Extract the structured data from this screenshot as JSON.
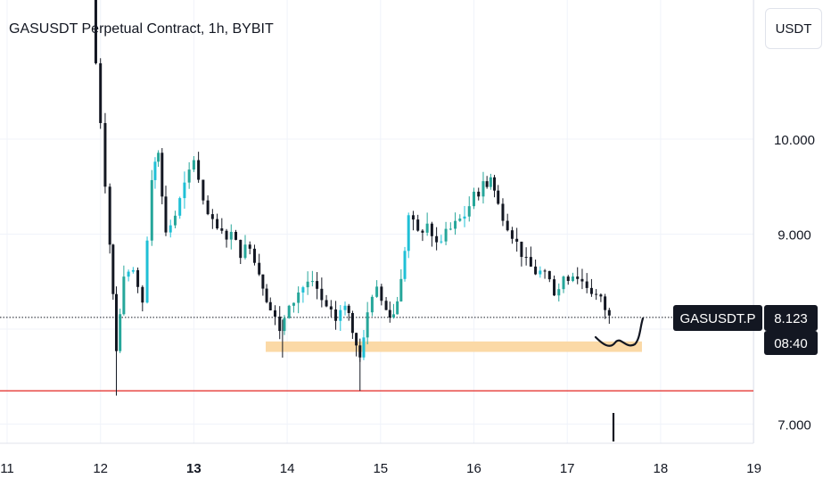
{
  "header": {
    "title": "GASUSDT Perpetual Contract, 1h, BYBIT"
  },
  "currency_button": "USDT",
  "price_label": {
    "symbol": "GASUSDT.P",
    "price": "8.123",
    "countdown": "08:40"
  },
  "colors": {
    "up": "#26a69a",
    "up_bright": "#1fc0d6",
    "down": "#131722",
    "support_zone": "#fbd9a6",
    "red_line": "#e53935",
    "grid": "#f0f3fa",
    "text": "#131722"
  },
  "chart_data": {
    "type": "candlestick",
    "title": "GASUSDT Perpetual Contract, 1h, BYBIT",
    "xlabel": "",
    "ylabel": "",
    "x_ticks": [
      "11",
      "12",
      "13",
      "14",
      "15",
      "16",
      "17",
      "18",
      "19"
    ],
    "x_tick_bold": "13",
    "y_ticks": [
      7.0,
      9.0,
      10.0
    ],
    "y_tick_labels": [
      "7.000",
      "9.000",
      "10.000"
    ],
    "x_range_days": [
      11.0,
      19.0
    ],
    "y_range": [
      6.8,
      11.4
    ],
    "last_price": 8.123,
    "horizontal_line": 7.35,
    "support_zone": {
      "x_from": 13.77,
      "x_to": 17.8,
      "y_low": 7.76,
      "y_high": 7.87
    },
    "grid": true,
    "candle_anchors": [
      [
        11.9,
        11.4,
        "down"
      ],
      [
        12.0,
        10.2,
        "down"
      ],
      [
        12.1,
        8.9,
        "down"
      ],
      [
        12.17,
        7.8,
        "down"
      ],
      [
        12.25,
        8.5,
        "up"
      ],
      [
        12.35,
        8.6,
        "up"
      ],
      [
        12.45,
        8.3,
        "down"
      ],
      [
        12.55,
        9.6,
        "up"
      ],
      [
        12.62,
        9.9,
        "up"
      ],
      [
        12.7,
        9.0,
        "down"
      ],
      [
        12.8,
        9.2,
        "up"
      ],
      [
        12.9,
        9.5,
        "up"
      ],
      [
        13.0,
        9.8,
        "up"
      ],
      [
        13.1,
        9.3,
        "down"
      ],
      [
        13.2,
        9.1,
        "down"
      ],
      [
        13.3,
        9.0,
        "down"
      ],
      [
        13.4,
        9.0,
        "down"
      ],
      [
        13.5,
        8.8,
        "down"
      ],
      [
        13.6,
        8.9,
        "up"
      ],
      [
        13.7,
        8.6,
        "down"
      ],
      [
        13.82,
        8.2,
        "down"
      ],
      [
        13.92,
        8.0,
        "down"
      ],
      [
        14.02,
        8.2,
        "up"
      ],
      [
        14.12,
        8.4,
        "up"
      ],
      [
        14.22,
        8.5,
        "up"
      ],
      [
        14.32,
        8.4,
        "down"
      ],
      [
        14.42,
        8.2,
        "down"
      ],
      [
        14.52,
        8.1,
        "down"
      ],
      [
        14.62,
        8.3,
        "up"
      ],
      [
        14.7,
        8.0,
        "down"
      ],
      [
        14.78,
        7.7,
        "down"
      ],
      [
        14.86,
        8.2,
        "up"
      ],
      [
        14.96,
        8.4,
        "up"
      ],
      [
        15.06,
        8.2,
        "down"
      ],
      [
        15.14,
        8.15,
        "up"
      ],
      [
        15.22,
        8.5,
        "up"
      ],
      [
        15.3,
        9.2,
        "up"
      ],
      [
        15.4,
        9.0,
        "down"
      ],
      [
        15.5,
        9.1,
        "up"
      ],
      [
        15.6,
        8.9,
        "down"
      ],
      [
        15.7,
        9.0,
        "up"
      ],
      [
        15.8,
        9.1,
        "up"
      ],
      [
        15.9,
        9.2,
        "up"
      ],
      [
        16.0,
        9.4,
        "up"
      ],
      [
        16.1,
        9.5,
        "up"
      ],
      [
        16.18,
        9.6,
        "up"
      ],
      [
        16.26,
        9.3,
        "down"
      ],
      [
        16.36,
        9.1,
        "down"
      ],
      [
        16.46,
        8.9,
        "down"
      ],
      [
        16.56,
        8.7,
        "down"
      ],
      [
        16.66,
        8.6,
        "down"
      ],
      [
        16.76,
        8.6,
        "down"
      ],
      [
        16.86,
        8.4,
        "down"
      ],
      [
        16.96,
        8.5,
        "up"
      ],
      [
        17.06,
        8.6,
        "up"
      ],
      [
        17.16,
        8.5,
        "down"
      ],
      [
        17.26,
        8.4,
        "down"
      ],
      [
        17.36,
        8.3,
        "down"
      ],
      [
        17.45,
        8.12,
        "down"
      ]
    ]
  }
}
